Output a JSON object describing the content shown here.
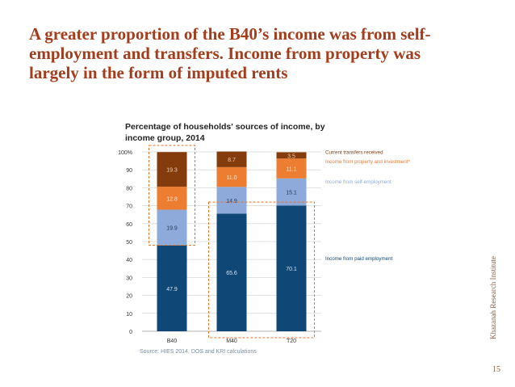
{
  "slide": {
    "title_lines": [
      "A greater proportion of the B40’s income was from self-",
      "employment and transfers. Income from property was",
      "largely in the form of imputed rents"
    ],
    "source": "Source: HIES 2014, DOS and KRI calculations",
    "side_label": "Khazanah Research Institute",
    "page_number": "15"
  },
  "chart_data": {
    "type": "bar",
    "stacked": true,
    "title": "Percentage of households' sources of income, by income group, 2014",
    "title_lines": [
      "Percentage  of  households'  sources  of  income,  by",
      "income group, 2014"
    ],
    "categories": [
      "B40",
      "M40",
      "T20"
    ],
    "ylim": [
      0,
      100
    ],
    "yticks": [
      "0",
      "10",
      "20",
      "30",
      "40",
      "50",
      "60",
      "70",
      "80",
      "90",
      "100%"
    ],
    "grid": true,
    "legend": "right, inline labels",
    "series": [
      {
        "name": "Income from paid employment",
        "values": [
          47.9,
          65.6,
          70.1
        ],
        "labels": [
          "47.9",
          "65.6",
          "70.1"
        ],
        "color": "#0f4777",
        "label_color": "#d9e3ee",
        "legend_color": "#0f4777"
      },
      {
        "name": "Income from self-employment",
        "values": [
          19.9,
          14.9,
          15.1
        ],
        "labels": [
          "19.9",
          "14.9",
          "15.1"
        ],
        "color": "#8eaadb",
        "label_color": "#1f3a5a",
        "legend_color": "#8eaadb"
      },
      {
        "name": "Income from property and investment*",
        "values": [
          12.8,
          11.0,
          11.1
        ],
        "labels": [
          "12.8",
          "11.0",
          "11.1"
        ],
        "color": "#ed7d31",
        "label_color": "#fbe3cf",
        "legend_color": "#ed7d31"
      },
      {
        "name": "Current transfers received",
        "values": [
          19.3,
          8.7,
          3.5
        ],
        "labels": [
          "19.3",
          "8.7",
          "3.5"
        ],
        "color": "#843c0c",
        "label_color": "#f2d0b8",
        "legend_color": "#843c0c"
      }
    ],
    "highlight_boxes": [
      {
        "category": "B40",
        "from_value": 48,
        "to_value": 100
      },
      {
        "category": "M40",
        "from_value": 0,
        "to_value": 72
      },
      {
        "category": "T20",
        "from_value": 0,
        "to_value": 72
      }
    ],
    "highlight_color": "#e8742c"
  }
}
